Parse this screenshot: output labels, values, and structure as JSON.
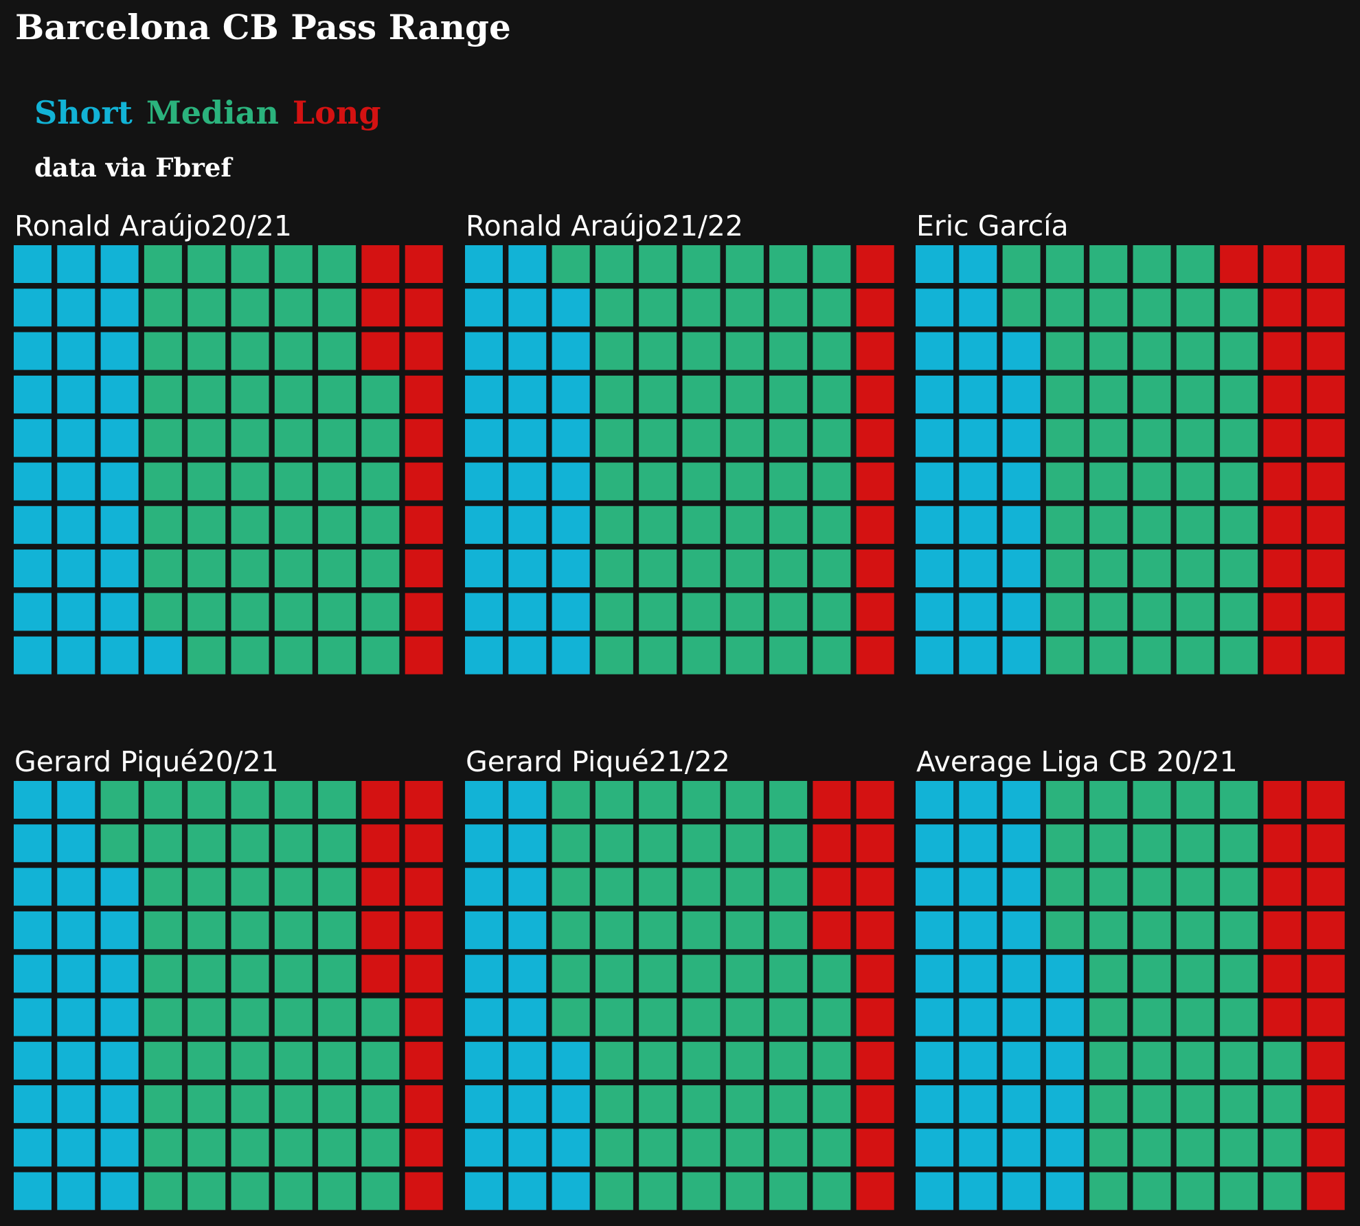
{
  "title": "Barcelona CB Pass Range",
  "legend": {
    "short": {
      "label": "Short",
      "color": "#12b3d6"
    },
    "median": {
      "label": "Median",
      "color": "#2bb37d"
    },
    "long": {
      "label": "Long",
      "color": "#d41212"
    }
  },
  "source": "data via Fbref",
  "chart_data": [
    {
      "type": "waffle",
      "title": "Ronald Araújo20/21",
      "rows": 10,
      "cols": 10,
      "categories": [
        "Short",
        "Median",
        "Long"
      ],
      "values": [
        31,
        56,
        13
      ]
    },
    {
      "type": "waffle",
      "title": "Ronald Araújo21/22",
      "rows": 10,
      "cols": 10,
      "categories": [
        "Short",
        "Median",
        "Long"
      ],
      "values": [
        29,
        61,
        10
      ]
    },
    {
      "type": "waffle",
      "title": "Eric García",
      "rows": 10,
      "cols": 10,
      "categories": [
        "Short",
        "Median",
        "Long"
      ],
      "values": [
        28,
        51,
        21
      ]
    },
    {
      "type": "waffle",
      "title": "Gerard Piqué20/21",
      "rows": 10,
      "cols": 10,
      "categories": [
        "Short",
        "Median",
        "Long"
      ],
      "values": [
        28,
        57,
        15
      ]
    },
    {
      "type": "waffle",
      "title": "Gerard Piqué21/22",
      "rows": 10,
      "cols": 10,
      "categories": [
        "Short",
        "Median",
        "Long"
      ],
      "values": [
        24,
        62,
        14
      ]
    },
    {
      "type": "waffle",
      "title": "Average Liga CB 20/21",
      "rows": 10,
      "cols": 10,
      "categories": [
        "Short",
        "Median",
        "Long"
      ],
      "values": [
        36,
        48,
        16
      ]
    }
  ]
}
